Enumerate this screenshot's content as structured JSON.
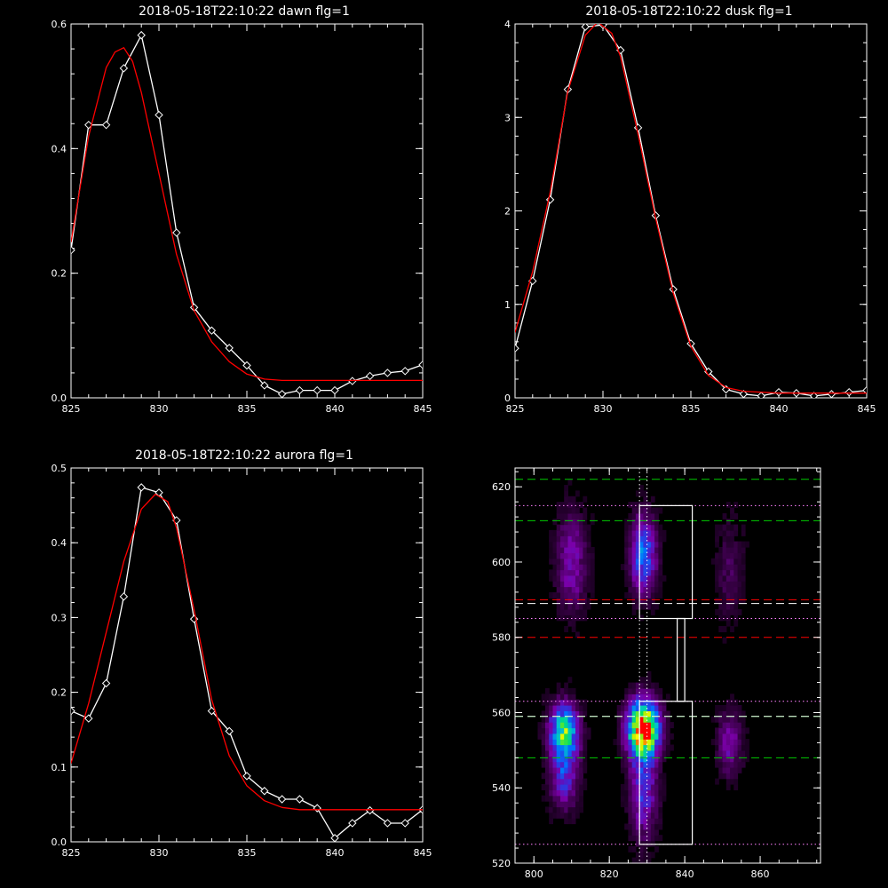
{
  "chart_data": [
    {
      "type": "line",
      "title": "2018-05-18T22:10:22 dawn flg=1",
      "xlim": [
        825,
        845
      ],
      "ylim": [
        0,
        0.6
      ],
      "xticks": [
        "825",
        "830",
        "835",
        "840",
        "845"
      ],
      "yticks": [
        "0.0",
        "0.2",
        "0.4",
        "0.6"
      ],
      "grid": false,
      "series": [
        {
          "color": "#ffffff",
          "marker": "diamond",
          "x": [
            825,
            826,
            827,
            828,
            829,
            830,
            831,
            832,
            833,
            834,
            835,
            836,
            837,
            838,
            839,
            840,
            841,
            842,
            843,
            844,
            845
          ],
          "y": [
            0.237,
            0.438,
            0.438,
            0.529,
            0.582,
            0.454,
            0.265,
            0.145,
            0.108,
            0.08,
            0.052,
            0.02,
            0.006,
            0.012,
            0.012,
            0.012,
            0.027,
            0.035,
            0.04,
            0.043,
            0.053
          ]
        },
        {
          "color": "#ff0000",
          "x": [
            825,
            826,
            827,
            827.5,
            828,
            828.5,
            829,
            830,
            831,
            832,
            833,
            834,
            835,
            836,
            837,
            840,
            845
          ],
          "y": [
            0.25,
            0.42,
            0.53,
            0.555,
            0.562,
            0.54,
            0.49,
            0.36,
            0.23,
            0.14,
            0.09,
            0.058,
            0.038,
            0.03,
            0.028,
            0.028,
            0.028
          ]
        }
      ]
    },
    {
      "type": "line",
      "title": "2018-05-18T22:10:22 dusk flg=1",
      "xlim": [
        825,
        845
      ],
      "ylim": [
        0,
        4
      ],
      "xticks": [
        "825",
        "830",
        "835",
        "840",
        "845"
      ],
      "yticks": [
        "0",
        "1",
        "2",
        "3",
        "4"
      ],
      "grid": false,
      "series": [
        {
          "color": "#ffffff",
          "marker": "diamond",
          "x": [
            825,
            826,
            827,
            828,
            829,
            830,
            831,
            832,
            833,
            834,
            835,
            836,
            837,
            838,
            839,
            840,
            841,
            842,
            843,
            844,
            845
          ],
          "y": [
            0.53,
            1.25,
            2.12,
            3.3,
            3.97,
            3.99,
            3.72,
            2.89,
            1.95,
            1.16,
            0.58,
            0.28,
            0.09,
            0.04,
            0.02,
            0.06,
            0.05,
            0.02,
            0.04,
            0.06,
            0.08
          ]
        },
        {
          "color": "#ff0000",
          "x": [
            825,
            826,
            827,
            828,
            829,
            829.7,
            830.5,
            831,
            832,
            833,
            834,
            835,
            836,
            837,
            838,
            840,
            845
          ],
          "y": [
            0.7,
            1.35,
            2.2,
            3.28,
            3.88,
            4.02,
            3.9,
            3.65,
            2.82,
            1.92,
            1.12,
            0.55,
            0.24,
            0.11,
            0.07,
            0.05,
            0.05
          ]
        }
      ]
    },
    {
      "type": "line",
      "title": "2018-05-18T22:10:22 aurora flg=1",
      "xlim": [
        825,
        845
      ],
      "ylim": [
        0,
        0.5
      ],
      "xticks": [
        "825",
        "830",
        "835",
        "840",
        "845"
      ],
      "yticks": [
        "0.0",
        "0.1",
        "0.2",
        "0.3",
        "0.4",
        "0.5"
      ],
      "grid": false,
      "series": [
        {
          "color": "#ffffff",
          "marker": "diamond",
          "x": [
            825,
            826,
            827,
            828,
            829,
            830,
            831,
            832,
            833,
            834,
            835,
            836,
            837,
            838,
            839,
            840,
            841,
            842,
            843,
            844,
            845
          ],
          "y": [
            0.175,
            0.165,
            0.212,
            0.328,
            0.474,
            0.467,
            0.43,
            0.298,
            0.175,
            0.148,
            0.088,
            0.068,
            0.057,
            0.057,
            0.045,
            0.005,
            0.025,
            0.042,
            0.025,
            0.025,
            0.043
          ]
        },
        {
          "color": "#ff0000",
          "x": [
            825,
            826,
            827,
            828,
            829,
            829.8,
            830.5,
            831,
            832,
            833,
            834,
            835,
            836,
            837,
            838,
            840,
            845
          ],
          "y": [
            0.105,
            0.185,
            0.28,
            0.375,
            0.445,
            0.465,
            0.455,
            0.42,
            0.31,
            0.19,
            0.115,
            0.075,
            0.055,
            0.046,
            0.043,
            0.043,
            0.043
          ]
        }
      ]
    },
    {
      "type": "heatmap",
      "title": "",
      "xlim": [
        795,
        876
      ],
      "ylim": [
        520,
        625
      ],
      "xticks": [
        "800",
        "820",
        "840",
        "860"
      ],
      "yticks": [
        "520",
        "540",
        "560",
        "580",
        "600",
        "620"
      ],
      "grid": false,
      "colormap": [
        "#000000",
        "#3a0048",
        "#7a00a8",
        "#3a2ad8",
        "#0070ff",
        "#00c8c8",
        "#00e060",
        "#c0f000",
        "#ffff00",
        "#ff0000"
      ],
      "blobs": [
        {
          "x": 808,
          "y": 555,
          "sx": 2.6,
          "sy": 5,
          "peak": 0.62
        },
        {
          "x": 808,
          "y": 543,
          "sx": 2.6,
          "sy": 6,
          "peak": 0.28
        },
        {
          "x": 829,
          "y": 556,
          "sx": 2.8,
          "sy": 5,
          "peak": 1.0
        },
        {
          "x": 829,
          "y": 540,
          "sx": 2.5,
          "sy": 9,
          "peak": 0.3
        },
        {
          "x": 852,
          "y": 552,
          "sx": 2.2,
          "sy": 6,
          "peak": 0.22
        },
        {
          "x": 829,
          "y": 602,
          "sx": 2.3,
          "sy": 7,
          "peak": 0.42
        },
        {
          "x": 810,
          "y": 600,
          "sx": 2.8,
          "sy": 9,
          "peak": 0.22
        },
        {
          "x": 852,
          "y": 598,
          "sx": 2.5,
          "sy": 10,
          "peak": 0.1
        }
      ],
      "hlines": [
        {
          "y": 622,
          "color": "#00cc00",
          "style": "dashed"
        },
        {
          "y": 611,
          "color": "#00cc00",
          "style": "dashed"
        },
        {
          "y": 615,
          "color": "#ff80ff",
          "style": "dotted"
        },
        {
          "y": 590,
          "color": "#ff0000",
          "style": "dashed"
        },
        {
          "y": 589,
          "color": "#ffffff",
          "style": "dashed"
        },
        {
          "y": 585,
          "color": "#ff80ff",
          "style": "dotted"
        },
        {
          "y": 580,
          "color": "#ff0000",
          "style": "dashed"
        },
        {
          "y": 563,
          "color": "#ff80ff",
          "style": "dotted"
        },
        {
          "y": 559,
          "color": "#00cc00",
          "style": "dashed"
        },
        {
          "y": 559,
          "color": "#ffffff",
          "style": "dashed"
        },
        {
          "y": 548,
          "color": "#00cc00",
          "style": "dashed"
        },
        {
          "y": 525,
          "color": "#ff80ff",
          "style": "dotted"
        }
      ],
      "vlines": [
        {
          "x": 828,
          "color": "#ffffff",
          "style": "dotted"
        },
        {
          "x": 830,
          "color": "#ffffff",
          "style": "dotted"
        }
      ],
      "boxes": [
        {
          "x0": 828,
          "x1": 842,
          "y0": 585,
          "y1": 615
        },
        {
          "x0": 828,
          "x1": 842,
          "y0": 525,
          "y1": 563
        },
        {
          "x0": 838,
          "x1": 840,
          "y0": 563,
          "y1": 585
        }
      ]
    }
  ]
}
